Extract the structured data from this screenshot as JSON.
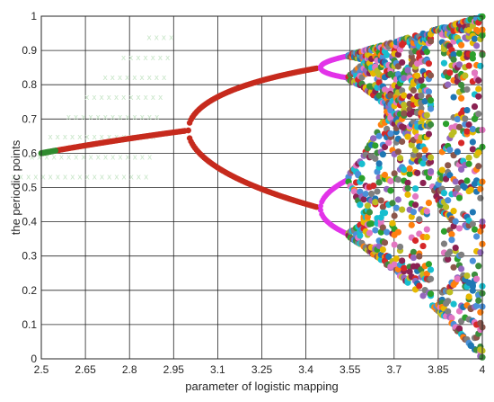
{
  "chart_data": {
    "type": "scatter",
    "title": "",
    "xlabel": "parameter of logistic mapping",
    "ylabel": "the periodic points",
    "xlim": [
      2.5,
      4.0
    ],
    "ylim": [
      0,
      1
    ],
    "grid": true,
    "legend": "none",
    "x_ticks": [
      "2.5",
      "2.65",
      "2.8",
      "2.95",
      "3.1",
      "3.25",
      "3.4",
      "3.55",
      "3.7",
      "3.85",
      "4"
    ],
    "y_ticks": [
      "0",
      "0.1",
      "0.2",
      "0.3",
      "0.4",
      "0.5",
      "0.6",
      "0.7",
      "0.8",
      "0.9",
      "1"
    ],
    "series": [
      {
        "type": "fixed-point branch",
        "color": "#2e8b2e",
        "x_range": [
          2.5,
          2.55
        ],
        "y_range": [
          0.6,
          0.608
        ]
      },
      {
        "type": "fixed-point branch",
        "color": "#c62a1d",
        "x_range": [
          2.5,
          2.99
        ],
        "y_range": [
          0.6,
          0.665
        ]
      },
      {
        "type": "period-2 branches",
        "color": "#c62a1d",
        "x_range": [
          3.0,
          3.44
        ]
      },
      {
        "type": "period-4 branches",
        "color": "#e233e8",
        "x_range": [
          3.45,
          3.54
        ]
      },
      {
        "type": "chaotic region",
        "colors": [
          "#1f77b4",
          "#ff7f0e",
          "#2ca02c",
          "#d62728",
          "#9467bd",
          "#8c564b",
          "#e377c2",
          "#7f7f7f",
          "#bcbd22",
          "#17becf",
          "#e6b800",
          "#4a90d9",
          "#8b2252",
          "#3c8d3c"
        ],
        "x_range": [
          3.545,
          4.0
        ],
        "y_range": [
          0,
          1
        ]
      }
    ],
    "background_text": {
      "color": "#c8e6c8",
      "lines": [
        "x x x x",
        "x x x x x x x",
        "x x x x x x x x x",
        "x x x x x x x x x x x",
        "x x x x x x x x x x x x x",
        "x x x x x x x x x x x x x x x",
        "x x x x x x x x x x x x x x x x x",
        "x x x x x x x x x x x x x x x x x x x"
      ]
    }
  }
}
